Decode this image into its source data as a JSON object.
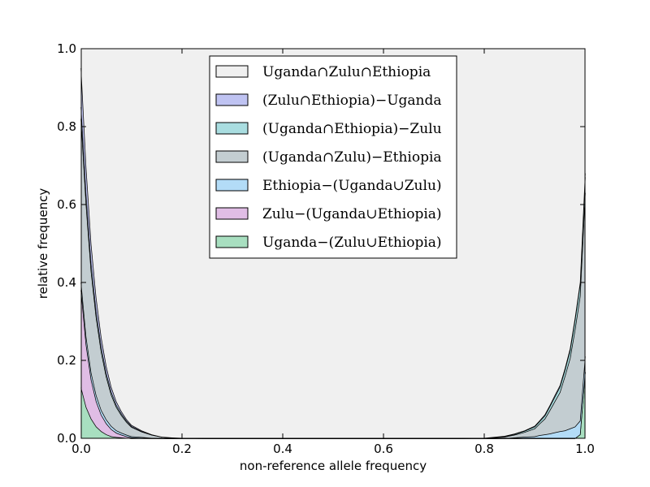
{
  "chart_data": {
    "type": "area",
    "xlabel": "non-reference allele frequency",
    "ylabel": "relative frequency",
    "xlim": [
      0,
      1
    ],
    "ylim": [
      0,
      1
    ],
    "xticks": [
      "0.0",
      "0.2",
      "0.4",
      "0.6",
      "0.8",
      "1.0"
    ],
    "yticks": [
      "0.0",
      "0.2",
      "0.4",
      "0.6",
      "0.8",
      "1.0"
    ],
    "grid": false,
    "legend_position": "top-center",
    "x": [
      0.0,
      0.01,
      0.02,
      0.03,
      0.04,
      0.05,
      0.06,
      0.07,
      0.08,
      0.09,
      0.1,
      0.12,
      0.14,
      0.16,
      0.18,
      0.2,
      0.25,
      0.5,
      0.75,
      0.8,
      0.84,
      0.86,
      0.88,
      0.9,
      0.91,
      0.92,
      0.93,
      0.94,
      0.95,
      0.96,
      0.97,
      0.98,
      0.99,
      1.0
    ],
    "series": [
      {
        "name": "Uganda−(Zulu∪Ethiopia)",
        "color": "#a8dfc0",
        "values": [
          0.13,
          0.08,
          0.05,
          0.03,
          0.018,
          0.01,
          0.005,
          0.003,
          0.002,
          0.001,
          0,
          0,
          0,
          0,
          0,
          0,
          0,
          0,
          0,
          0,
          0,
          0,
          0,
          0,
          0,
          0,
          0,
          0,
          0,
          0,
          0,
          0,
          0.01,
          0.17
        ]
      },
      {
        "name": "Zulu−(Uganda∪Ethiopia)",
        "color": "#e0bde5",
        "values": [
          0.25,
          0.16,
          0.1,
          0.065,
          0.042,
          0.028,
          0.018,
          0.011,
          0.007,
          0.004,
          0.002,
          0.001,
          0,
          0,
          0,
          0,
          0,
          0,
          0,
          0,
          0,
          0,
          0,
          0,
          0,
          0,
          0,
          0,
          0,
          0,
          0,
          0,
          0,
          0
        ]
      },
      {
        "name": "Ethiopia−(Uganda∪Zulu)",
        "color": "#b3dcf7",
        "values": [
          0.02,
          0.02,
          0.018,
          0.015,
          0.012,
          0.01,
          0.008,
          0.006,
          0.005,
          0.004,
          0.003,
          0.002,
          0.001,
          0,
          0,
          0,
          0,
          0,
          0,
          0,
          0,
          0.002,
          0.004,
          0.005,
          0.008,
          0.01,
          0.012,
          0.015,
          0.018,
          0.02,
          0.025,
          0.03,
          0.035,
          0.04
        ]
      },
      {
        "name": "(Uganda∩Zulu)−Ethiopia",
        "color": "#c3cdd1",
        "values": [
          0.42,
          0.34,
          0.26,
          0.2,
          0.15,
          0.11,
          0.08,
          0.06,
          0.045,
          0.033,
          0.024,
          0.014,
          0.008,
          0.004,
          0.002,
          0.001,
          0,
          0,
          0,
          0.001,
          0.004,
          0.007,
          0.012,
          0.02,
          0.03,
          0.04,
          0.06,
          0.08,
          0.1,
          0.14,
          0.18,
          0.25,
          0.32,
          0.42
        ]
      },
      {
        "name": "(Uganda∩Ethiopia)−Zulu",
        "color": "#a9dde0",
        "values": [
          0.03,
          0.025,
          0.02,
          0.015,
          0.012,
          0.009,
          0.007,
          0.005,
          0.004,
          0.003,
          0.002,
          0.001,
          0,
          0,
          0,
          0,
          0,
          0,
          0,
          0,
          0.001,
          0.002,
          0.003,
          0.005,
          0.006,
          0.008,
          0.01,
          0.012,
          0.014,
          0.016,
          0.02,
          0.025,
          0.03,
          0.04
        ]
      },
      {
        "name": "(Zulu∩Ethiopia)−Uganda",
        "color": "#bfc3f2",
        "values": [
          0.1,
          0.07,
          0.05,
          0.035,
          0.025,
          0.018,
          0.013,
          0.009,
          0.006,
          0.004,
          0.003,
          0.002,
          0.001,
          0,
          0,
          0,
          0,
          0,
          0,
          0,
          0.001,
          0.001,
          0.001,
          0.002,
          0.002,
          0.003,
          0.003,
          0.004,
          0.004,
          0.004,
          0.005,
          0.005,
          0.005,
          0.01
        ]
      },
      {
        "name": "Uganda∩Zulu∩Ethiopia",
        "color": "#f0f0f0",
        "values": [
          0.05,
          0.04,
          0.03,
          0.02,
          0.015,
          0.011,
          0.008,
          0.006,
          0.004,
          0.003,
          0.002,
          0.001,
          0.001,
          0,
          0,
          0,
          0,
          0,
          0,
          0,
          0.001,
          0.002,
          0.003,
          0.004,
          0.006,
          0.008,
          0.01,
          0.012,
          0.015,
          0.02,
          0.03,
          0.05,
          0.08,
          0.2
        ]
      }
    ]
  }
}
